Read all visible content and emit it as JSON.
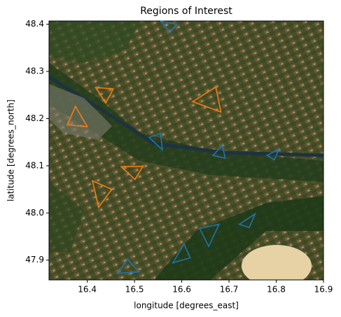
{
  "chart_data": {
    "type": "map-polygons",
    "title": "Regions of Interest",
    "x_label": "longitude [degrees_east]",
    "y_label": "latitude [degrees_north]",
    "xlim": [
      16.319,
      16.9
    ],
    "ylim": [
      47.858,
      48.407
    ],
    "xticks": [
      16.4,
      16.5,
      16.6,
      16.7,
      16.8,
      16.9
    ],
    "yticks": [
      47.9,
      {
        "value": 48,
        "label": "48.0"
      },
      48.1,
      48.2,
      48.3,
      48.4
    ],
    "regions": [
      {
        "color": "#ff7f0e",
        "lon": [
          16.375,
          16.358,
          16.4
        ],
        "lat": [
          48.226,
          48.187,
          48.183
        ]
      },
      {
        "color": "#ff7f0e",
        "lon": [
          16.418,
          16.455,
          16.439
        ],
        "lat": [
          48.266,
          48.263,
          48.233
        ]
      },
      {
        "color": "#ff7f0e",
        "lon": [
          16.623,
          16.672,
          16.683
        ],
        "lat": [
          48.236,
          48.267,
          48.214
        ]
      },
      {
        "color": "#ff7f0e",
        "lon": [
          16.472,
          16.518,
          16.501
        ],
        "lat": [
          48.098,
          48.099,
          48.071
        ]
      },
      {
        "color": "#ff7f0e",
        "lon": [
          16.411,
          16.452,
          16.424
        ],
        "lat": [
          48.068,
          48.05,
          48.012
        ]
      },
      {
        "color": "#1f77b4",
        "lon": [
          16.555,
          16.589,
          16.575
        ],
        "lat": [
          48.407,
          48.4,
          48.383
        ]
      },
      {
        "color": "#1f77b4",
        "lon": [
          16.531,
          16.555,
          16.559
        ],
        "lat": [
          48.16,
          48.169,
          48.134
        ]
      },
      {
        "color": "#1f77b4",
        "lon": [
          16.666,
          16.686,
          16.692
        ],
        "lat": [
          48.122,
          48.143,
          48.116
        ]
      },
      {
        "color": "#1f77b4",
        "lon": [
          16.78,
          16.806,
          16.796
        ],
        "lat": [
          48.122,
          48.135,
          48.113
        ]
      },
      {
        "color": "#1f77b4",
        "lon": [
          16.638,
          16.679,
          16.657
        ],
        "lat": [
          47.967,
          47.976,
          47.929
        ]
      },
      {
        "color": "#1f77b4",
        "lon": [
          16.722,
          16.755,
          16.743
        ],
        "lat": [
          47.976,
          47.998,
          47.969
        ]
      },
      {
        "color": "#1f77b4",
        "lon": [
          16.581,
          16.605,
          16.618
        ],
        "lat": [
          47.894,
          47.934,
          47.905
        ]
      },
      {
        "color": "#1f77b4",
        "lon": [
          16.464,
          16.485,
          16.509
        ],
        "lat": [
          47.872,
          47.902,
          47.875
        ]
      }
    ]
  }
}
